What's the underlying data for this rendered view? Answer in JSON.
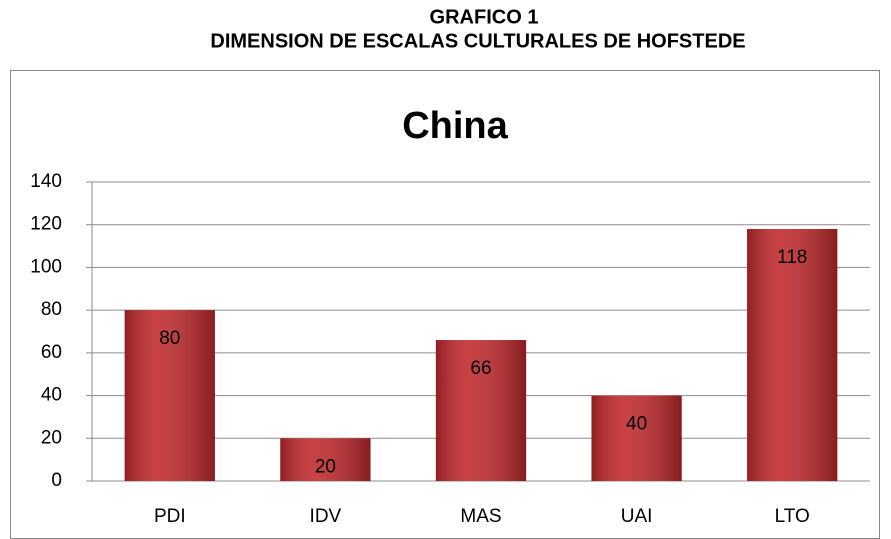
{
  "chart_data": {
    "type": "bar",
    "heading": [
      "GRAFICO 1",
      "DIMENSION DE ESCALAS CULTURALES DE HOFSTEDE"
    ],
    "title": "China",
    "categories": [
      "PDI",
      "IDV",
      "MAS",
      "UAI",
      "LTO"
    ],
    "values": [
      80,
      20,
      66,
      40,
      118
    ],
    "color": "#c0282b",
    "ylim": [
      0,
      140
    ],
    "yticks": [
      0,
      20,
      40,
      60,
      80,
      100,
      120,
      140
    ],
    "grid": true
  }
}
